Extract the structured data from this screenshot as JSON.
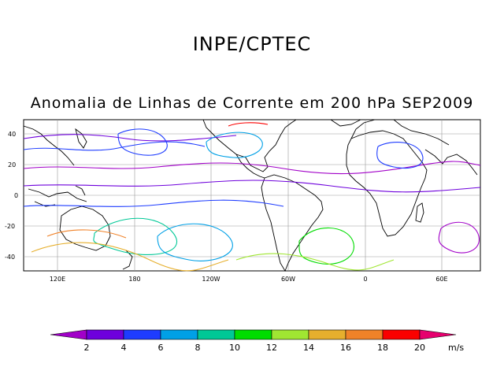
{
  "header": {
    "organization": "INPE/CPTEC",
    "subtitle": "Anomalia de Linhas de Corrente em 200 hPa SEP2009"
  },
  "map": {
    "lon_ticks": [
      "120E",
      "180",
      "120W",
      "60W",
      "0",
      "60E"
    ],
    "lat_ticks": [
      "40",
      "20",
      "0",
      "-20",
      "-40"
    ]
  },
  "colorbar": {
    "unit": "m/s",
    "labels": [
      "2",
      "4",
      "6",
      "8",
      "10",
      "12",
      "14",
      "16",
      "18",
      "20"
    ],
    "colors": [
      "#a100c8",
      "#6e00dc",
      "#1e3cff",
      "#00a0e6",
      "#00c896",
      "#00dc00",
      "#a0e632",
      "#e6af2d",
      "#f08228",
      "#fa0000",
      "#e6006e"
    ]
  }
}
